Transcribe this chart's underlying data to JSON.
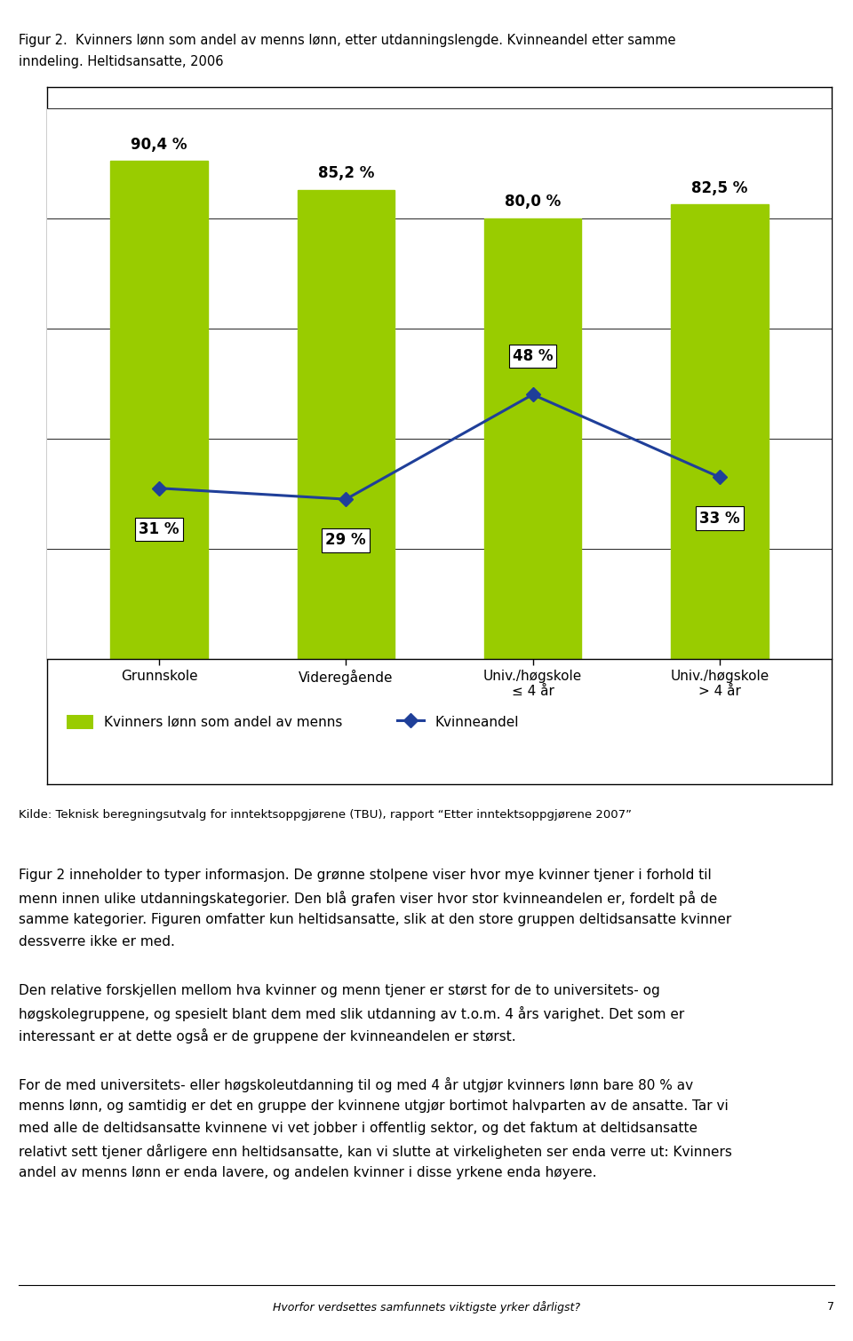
{
  "title_line1": "Figur 2.  Kvinners lønn som andel av menns lønn, etter utdanningslengde. Kvinneandel etter samme",
  "title_line2": "inndeling. Heltidsansatte, 2006",
  "categories": [
    "Grunnskole",
    "Videregående",
    "Univ./høgskole\n≤ 4 år",
    "Univ./høgskole\n> 4 år"
  ],
  "bar_values": [
    90.4,
    85.2,
    80.0,
    82.5
  ],
  "bar_labels": [
    "90,4 %",
    "85,2 %",
    "80,0 %",
    "82,5 %"
  ],
  "line_values": [
    31,
    29,
    48,
    33
  ],
  "line_labels": [
    "31 %",
    "29 %",
    "48 %",
    "33 %"
  ],
  "bar_color": "#99CC00",
  "line_color": "#1F3F99",
  "legend_bar_label": "Kvinners lønn som andel av menns",
  "legend_line_label": "Kvinneandel",
  "source_text": "Kilde: Teknisk beregningsutvalg for inntektsoppgjørene (TBU), rapport “Etter inntektsoppgjørene 2007”",
  "para1_lines": [
    "Figur 2 inneholder to typer informasjon. De grønne stolpene viser hvor mye kvinner tjener i forhold til",
    "menn innen ulike utdanningskategorier. Den blå grafen viser hvor stor kvinneandelen er, fordelt på de",
    "samme kategorier. Figuren omfatter kun heltidsansatte, slik at den store gruppen deltidsansatte kvinner",
    "dessverre ikke er med."
  ],
  "para2_lines": [
    "Den relative forskjellen mellom hva kvinner og menn tjener er størst for de to universitets- og",
    "høgskolegruppene, og spesielt blant dem med slik utdanning av t.o.m. 4 års varighet. Det som er",
    "interessant er at dette også er de gruppene der kvinneandelen er størst."
  ],
  "para3_lines": [
    "For de med universitets- eller høgskoleutdanning til og med 4 år utgjør kvinners lønn bare 80 % av",
    "menns lønn, og samtidig er det en gruppe der kvinnene utgjør bortimot halvparten av de ansatte. Tar vi",
    "med alle de deltidsansatte kvinnene vi vet jobber i offentlig sektor, og det faktum at deltidsansatte",
    "relativt sett tjener dårligere enn heltidsansatte, kan vi slutte at virkeligheten ser enda verre ut: Kvinners",
    "andel av menns lønn er enda lavere, og andelen kvinner i disse yrkene enda høyere."
  ],
  "footer_text": "Hvorfor verdsettes samfunnets viktigste yrker dårligst?",
  "footer_page": "7",
  "ylim": [
    0,
    100
  ],
  "yticks": [
    0,
    20,
    40,
    60,
    80,
    100
  ],
  "bar_color_edge": "#99CC00",
  "page_bg": "#ffffff"
}
